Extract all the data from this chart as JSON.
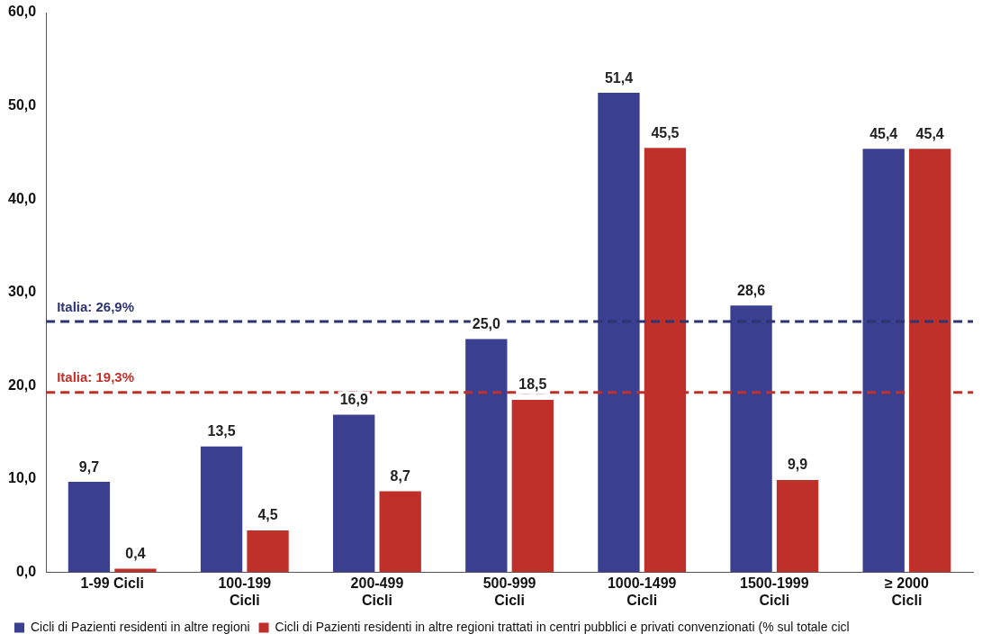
{
  "chart_data": {
    "type": "bar",
    "categories": [
      "1-99 Cicli",
      "100-199 Cicli",
      "200-499 Cicli",
      "500-999 Cicli",
      "1000-1499 Cicli",
      "1500-1999 Cicli",
      "≥ 2000 Cicli"
    ],
    "series": [
      {
        "name": "Cicli di Pazienti residenti in altre regioni",
        "color": "#3b3f8f",
        "values": [
          9.7,
          13.5,
          16.9,
          25.0,
          51.4,
          28.6,
          45.4
        ],
        "value_labels": [
          "9,7",
          "13,5",
          "16,9",
          "25,0",
          "51,4",
          "28,6",
          "45,4"
        ]
      },
      {
        "name": "Cicli di Pazienti residenti in altre regioni trattati in centri pubblici e privati convenzionati (% sul totale cicl",
        "color": "#c0302a",
        "values": [
          0.4,
          4.5,
          8.7,
          18.5,
          45.5,
          9.9,
          45.4
        ],
        "value_labels": [
          "0,4",
          "4,5",
          "8,7",
          "18,5",
          "45,5",
          "9,9",
          "45,4"
        ]
      }
    ],
    "ylim": [
      0,
      60
    ],
    "yticks": [
      {
        "value": 0,
        "label": "0,0"
      },
      {
        "value": 10,
        "label": "10,0"
      },
      {
        "value": 20,
        "label": "20,0"
      },
      {
        "value": 30,
        "label": "30,0"
      },
      {
        "value": 40,
        "label": "40,0"
      },
      {
        "value": 50,
        "label": "50,0"
      },
      {
        "value": 60,
        "label": "60,0"
      }
    ],
    "ref_lines": [
      {
        "axis": "y",
        "value": 26.9,
        "label": "Italia: 26,9%",
        "color": "#2e3470",
        "line_style": "dashed"
      },
      {
        "axis": "y",
        "value": 19.3,
        "label": "Italia: 19,3%",
        "color": "#c0302a",
        "line_style": "dashed"
      }
    ],
    "grid": false,
    "legend": "bottom left"
  }
}
